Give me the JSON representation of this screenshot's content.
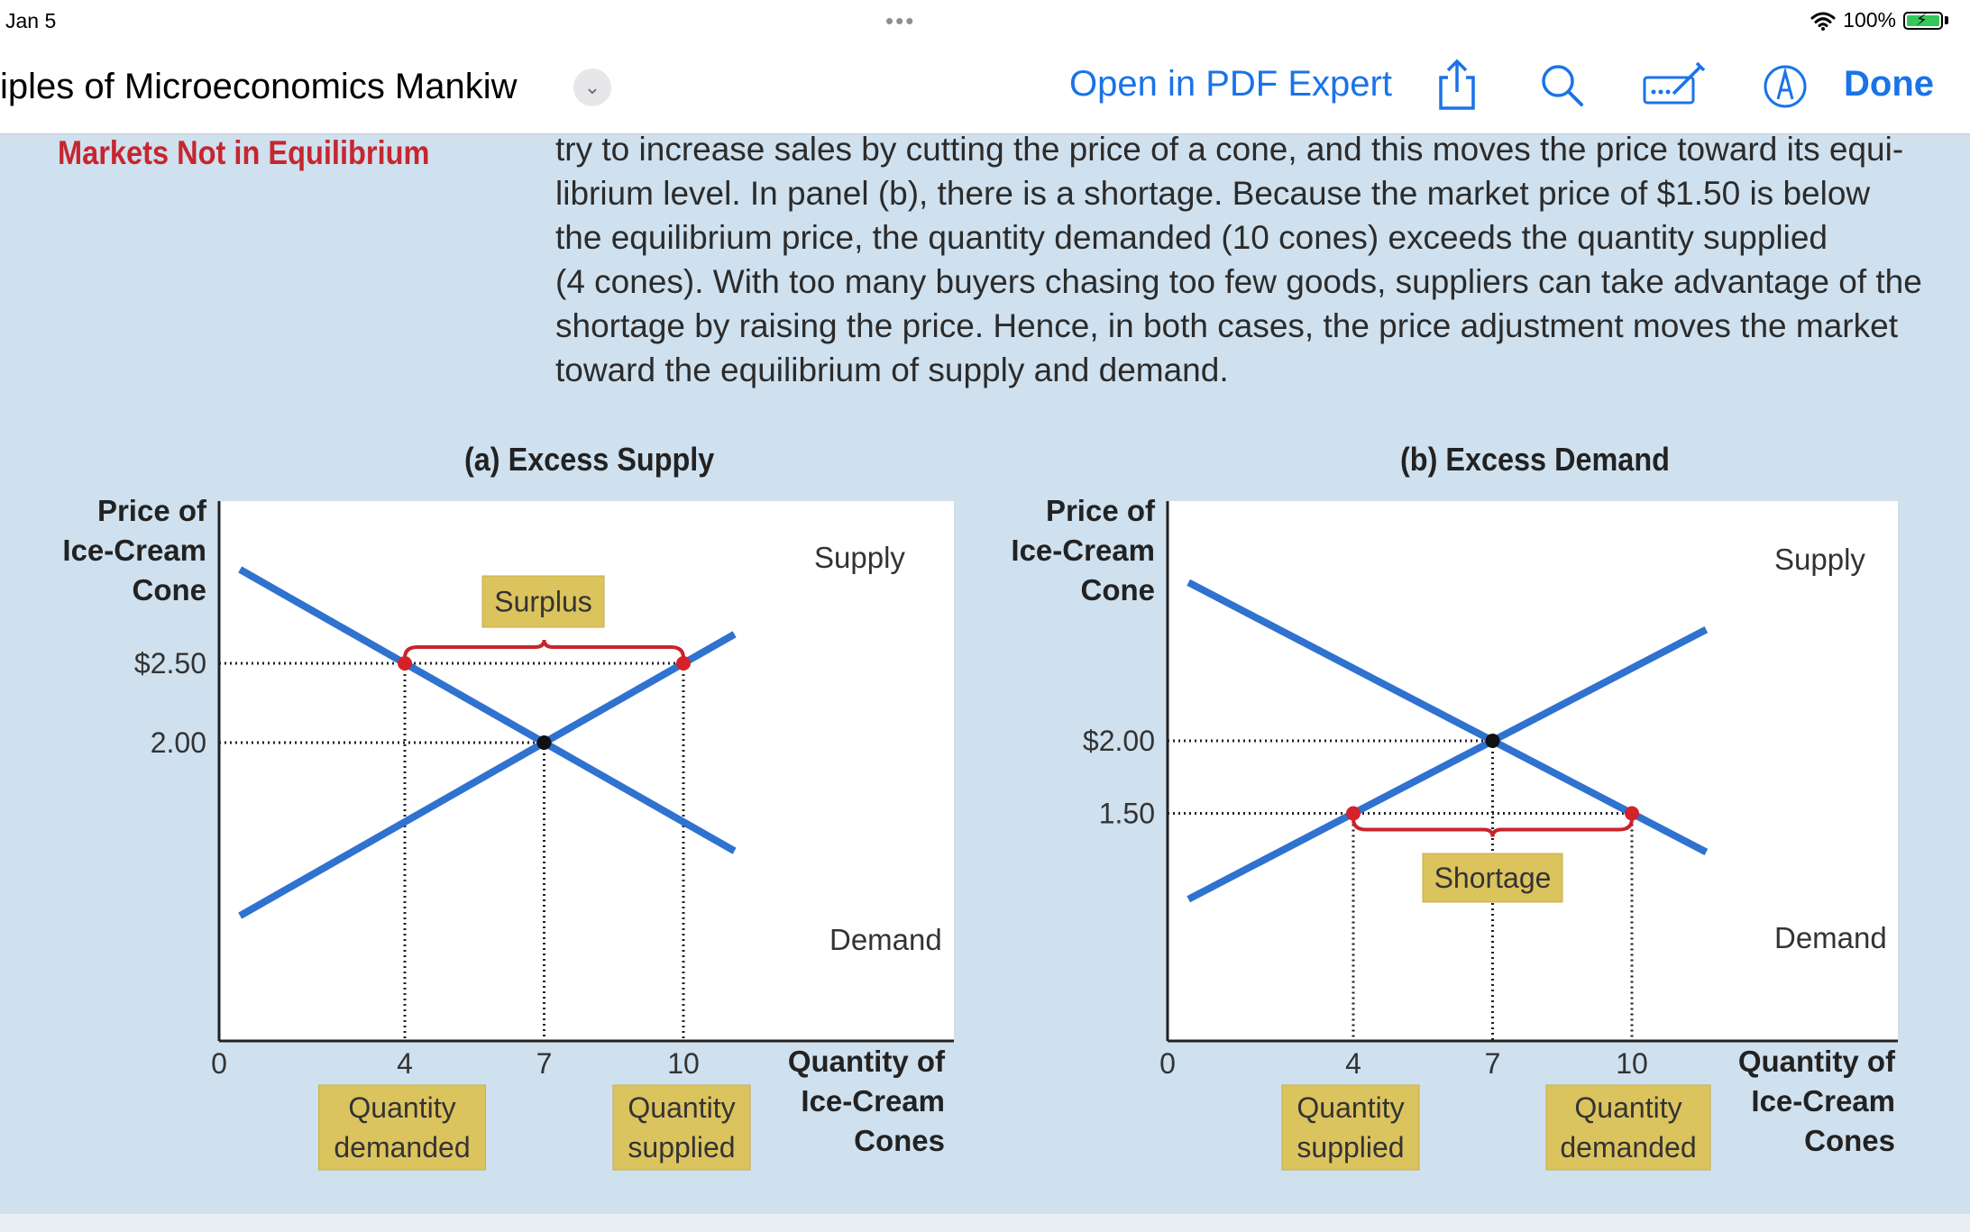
{
  "status_bar": {
    "time": "Jan 5",
    "dots": "•••",
    "battery": "100%"
  },
  "nav": {
    "title": "iples of Microeconomics Mankiw",
    "open_in": "Open in PDF Expert",
    "done": "Done"
  },
  "page": {
    "margin_heading": "Markets Not in Equilibrium",
    "paragraph_lines": [
      "try to increase sales by cutting the price of a cone, and this moves the price toward its equi-",
      "librium level. In panel (b), there is a shortage. Because the market price of $1.50 is below",
      "the equilibrium price, the quantity demanded (10 cones) exceeds the quantity supplied",
      "(4 cones). With too many buyers chasing too few goods, suppliers can take advantage of the",
      "shortage by raising the price. Hence, in both cases, the price adjustment moves the market",
      "toward the equilibrium of supply and demand."
    ]
  },
  "chart_data": [
    {
      "type": "line",
      "title": "(a) Excess Supply",
      "ylabel": [
        "Price of",
        "Ice-Cream",
        "Cone"
      ],
      "xlabel": [
        "Quantity of",
        "Ice-Cream",
        "Cones"
      ],
      "x_ticks": [
        "0",
        "4",
        "7",
        "10"
      ],
      "y_ticks": [
        "$2.50",
        "2.00"
      ],
      "series": [
        {
          "name": "Supply",
          "x": [
            4,
            7,
            10
          ],
          "y": [
            1.5,
            2.0,
            2.5
          ]
        },
        {
          "name": "Demand",
          "x": [
            4,
            7,
            10
          ],
          "y": [
            2.5,
            2.0,
            1.5
          ]
        }
      ],
      "equilibrium": {
        "x": 7,
        "y": 2.0
      },
      "market_price": 2.5,
      "points": [
        {
          "x": 4,
          "y": 2.5
        },
        {
          "x": 10,
          "y": 2.5
        }
      ],
      "gap_label": "Surplus",
      "x_boxes": [
        {
          "x": 4,
          "lines": [
            "Quantity",
            "demanded"
          ]
        },
        {
          "x": 10,
          "lines": [
            "Quantity",
            "supplied"
          ]
        }
      ]
    },
    {
      "type": "line",
      "title": "(b) Excess Demand",
      "ylabel": [
        "Price of",
        "Ice-Cream",
        "Cone"
      ],
      "xlabel": [
        "Quantity of",
        "Ice-Cream",
        "Cones"
      ],
      "x_ticks": [
        "0",
        "4",
        "7",
        "10"
      ],
      "y_ticks": [
        "$2.00",
        "1.50"
      ],
      "series": [
        {
          "name": "Supply",
          "x": [
            4,
            7,
            10
          ],
          "y": [
            1.5,
            2.0,
            2.5
          ]
        },
        {
          "name": "Demand",
          "x": [
            4,
            7,
            10
          ],
          "y": [
            2.5,
            2.0,
            1.5
          ]
        }
      ],
      "equilibrium": {
        "x": 7,
        "y": 2.0
      },
      "market_price": 1.5,
      "points": [
        {
          "x": 4,
          "y": 1.5
        },
        {
          "x": 10,
          "y": 1.5
        }
      ],
      "gap_label": "Shortage",
      "x_boxes": [
        {
          "x": 4,
          "lines": [
            "Quantity",
            "supplied"
          ]
        },
        {
          "x": 10,
          "lines": [
            "Quantity",
            "demanded"
          ]
        }
      ]
    }
  ]
}
